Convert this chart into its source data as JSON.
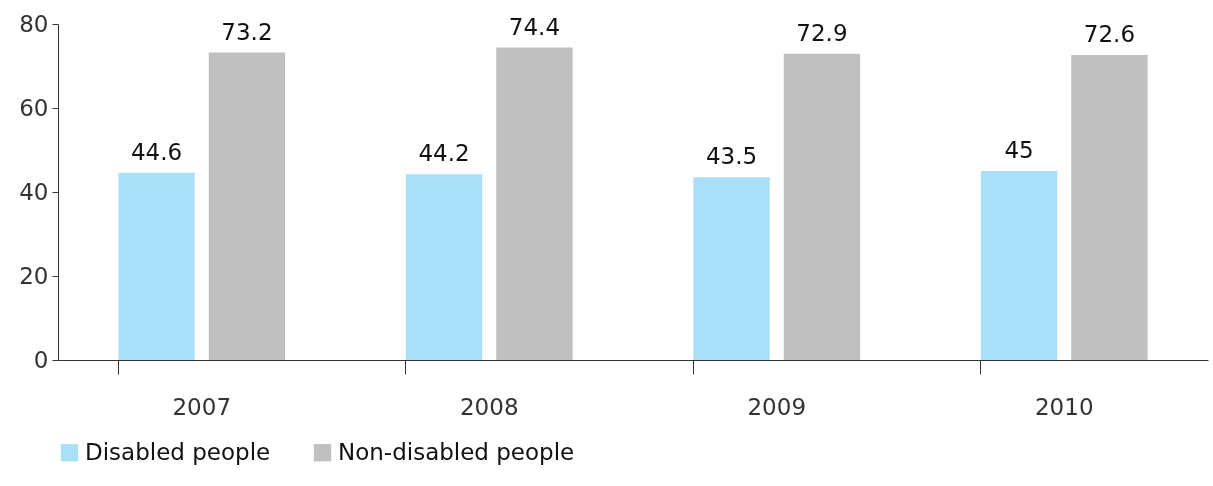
{
  "chart_data": {
    "type": "bar",
    "categories": [
      "2007",
      "2008",
      "2009",
      "2010"
    ],
    "series": [
      {
        "name": "Disabled people",
        "color": "#aadff8",
        "values": [
          44.6,
          44.2,
          43.5,
          45
        ]
      },
      {
        "name": "Non-disabled people",
        "color": "#c0c0c0",
        "values": [
          73.2,
          74.4,
          72.9,
          72.6
        ]
      }
    ],
    "ylim": [
      0,
      80
    ],
    "yticks": [
      0,
      20,
      40,
      60,
      80
    ],
    "grid": false,
    "legend": "bottom",
    "data_labels": true
  }
}
